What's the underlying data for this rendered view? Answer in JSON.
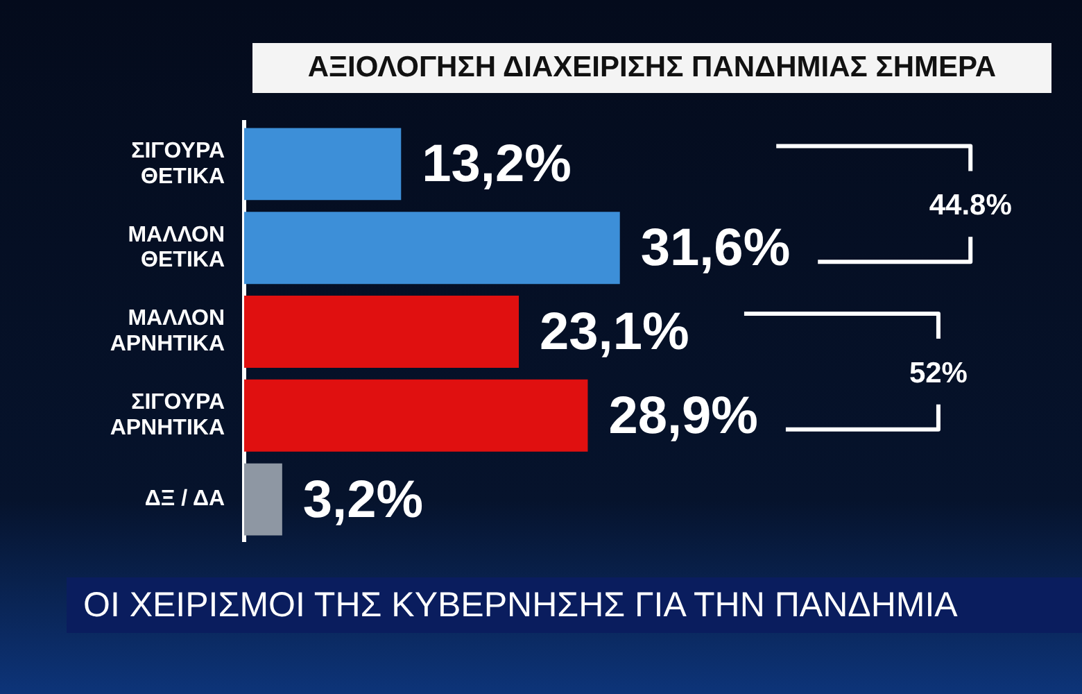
{
  "chart_data": {
    "type": "bar",
    "orientation": "horizontal",
    "title": "ΑΞΙΟΛΟΓΗΣΗ ΔΙΑΧΕΙΡΙΣΗΣ ΠΑΝΔΗΜΙΑΣ ΣΗΜΕΡΑ",
    "subtitle": "ΟΙ ΧΕΙΡΙΣΜΟΙ ΤΗΣ ΚΥΒΕΡΝΗΣΗΣ ΓΙΑ ΤΗΝ ΠΑΝΔΗΜΙΑ",
    "categories": [
      "ΣΙΓΟΥΡΑ ΘΕΤΙΚΑ",
      "ΜΑΛΛΟΝ ΘΕΤΙΚΑ",
      "ΜΑΛΛΟΝ ΑΡΝΗΤΙΚΑ",
      "ΣΙΓΟΥΡΑ ΑΡΝΗΤΙΚΑ",
      "ΔΞ / ΔΑ"
    ],
    "values": [
      13.2,
      31.6,
      23.1,
      28.9,
      3.2
    ],
    "value_labels": [
      "13,2%",
      "31,6%",
      "23,1%",
      "28,9%",
      "3,2%"
    ],
    "colors": [
      "#3d8fd8",
      "#3d8fd8",
      "#e01010",
      "#e01010",
      "#8e97a3"
    ],
    "annotations": [
      "44.8%",
      "52%"
    ],
    "tick_labels": "y",
    "grid": false,
    "legend": false
  }
}
